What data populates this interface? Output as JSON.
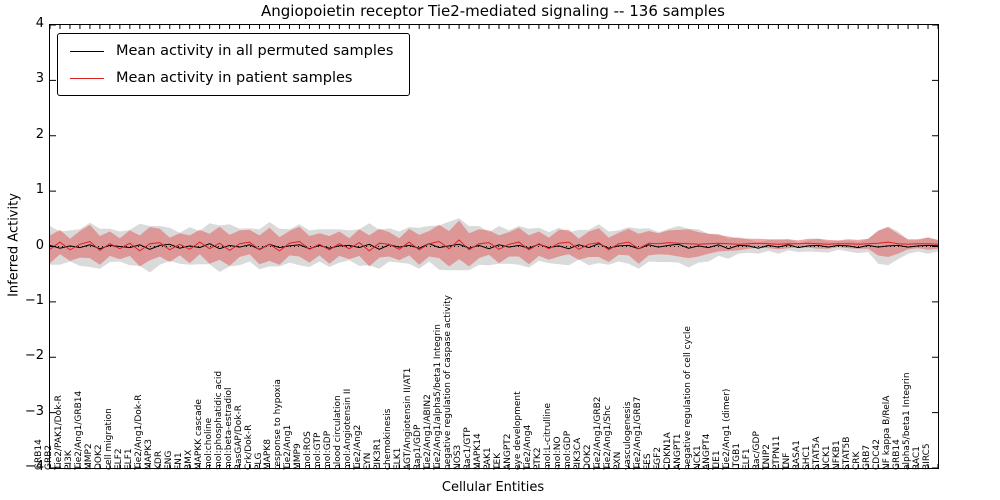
{
  "figure": {
    "title": "Angiopoietin receptor Tie2-mediated signaling -- 136 samples"
  },
  "chart_data": {
    "type": "line",
    "title": "Angiopoietin receptor Tie2-mediated signaling -- 136 samples",
    "xlabel": "Cellular Entities",
    "ylabel": "Inferred Activity",
    "ylim": [
      -4,
      4
    ],
    "yticks": [
      -4,
      -3,
      -2,
      -1,
      0,
      1,
      2,
      3,
      4
    ],
    "grid": false,
    "legend_position": "upper-left",
    "zero_line_style": "dotted",
    "categories": [
      "GRB14",
      "GRB2",
      "Tie2/PAK1/Dok-R",
      "PI3K",
      "Tie2/Ang1/GRB14",
      "MMP2",
      "DOK2",
      "cell migration",
      "ELF2",
      "ELF1",
      "Tie2/Ang1/Dok-R",
      "MAPK3",
      "KDR",
      "ENG",
      "FN1",
      "BMX",
      "MAPKK cascade",
      "mol:choline",
      "mol:phosphatidic acid",
      "mol:beta-estradiol",
      "RasGAP/Dok-R",
      "Crk/Dok-R",
      "PLG",
      "MAPK8",
      "response to hypoxia",
      "Tie2/Ang1",
      "MMP9",
      "mol:ROS",
      "mol:GTP",
      "mol:GDP",
      "blood circulation",
      "mol:Angiotensin II",
      "Tie2/Ang2",
      "FYN",
      "PIK3R1",
      "chemokinesis",
      "ELK1",
      "AGT/Angiotensin II/AT1",
      "Rap1/GDP",
      "Tie2/Ang1/ABIN2",
      "Tie2/Ang1/alpha5/beta1 Integrin",
      "negative regulation of caspase activity",
      "NOS3",
      "Rac1/GTP",
      "MAPK14",
      "PAK1",
      "TEK",
      "ANGPT2",
      "eye development",
      "Tie2/Ang4",
      "PTK2",
      "mol:L-citrulline",
      "mol:NO",
      "mol:GDP",
      "PIK3CA",
      "DOK2",
      "Tie2/Ang1/GRB2",
      "Tie2/Ang1/Shc",
      "PXN",
      "vasculogenesis",
      "Tie2/Ang1/GRB7",
      "FES",
      "FGF2",
      "CDKN1A",
      "ANGPT1",
      "negative regulation of cell cycle",
      "NCK1",
      "ANGPT4",
      "TIE1",
      "Tie2/Ang1 (dimer)",
      "ITGB1",
      "ELF1",
      "Rac/GDP",
      "TNIP2",
      "PTPN11",
      "TNF",
      "RASA1",
      "SHC1",
      "STAT5A",
      "NCK1",
      "NFKB1",
      "STAT5B",
      "CRK",
      "GRB7",
      "CDC42",
      "NF kappa B/RelA",
      "GRB14",
      "alpha5/beta1 Integrin",
      "RAC1",
      "BIRC5"
    ],
    "series": [
      {
        "name": "Mean activity in all permuted samples",
        "color": "#000000",
        "band_color": "#bbbbbb",
        "band_opacity": 0.55,
        "values": [
          0.02,
          -0.03,
          0.01,
          -0.02,
          0.03,
          -0.04,
          0.02,
          0,
          -0.02,
          0.03,
          -0.05,
          0.02,
          0.04,
          -0.03,
          0.01,
          -0.02,
          0.05,
          -0.04,
          0.02,
          -0.01,
          0.03,
          -0.05,
          0.04,
          -0.02,
          0.01,
          0.03,
          -0.04,
          0.02,
          -0.03,
          0.01,
          0.02,
          -0.02,
          0.04,
          -0.05,
          0.03,
          -0.01,
          0.02,
          -0.03,
          0.05,
          -0.02,
          0.01,
          0.04,
          -0.03,
          0.02,
          -0.04,
          0.03,
          -0.01,
          0.02,
          -0.03,
          0.04,
          -0.02,
          0.01,
          -0.04,
          0.03,
          -0.02,
          0.05,
          -0.03,
          0.01,
          0.02,
          -0.04,
          0.03,
          -0.01,
          0.02,
          0.04,
          -0.03,
          0.01,
          -0.02,
          0.03,
          -0.04,
          0.02,
          0.01,
          -0.03,
          0.02,
          -0.01,
          0.03,
          -0.02,
          0.01,
          0.02,
          -0.01,
          0.02,
          0.01,
          -0.02,
          0.02,
          -0.01,
          0.01,
          0.02,
          -0.01,
          0.01,
          0.02,
          0.01
        ],
        "band_half_width": [
          0.35,
          0.3,
          0.28,
          0.33,
          0.4,
          0.36,
          0.3,
          0.27,
          0.32,
          0.38,
          0.42,
          0.35,
          0.3,
          0.28,
          0.34,
          0.3,
          0.37,
          0.42,
          0.38,
          0.33,
          0.3,
          0.36,
          0.4,
          0.34,
          0.3,
          0.37,
          0.33,
          0.29,
          0.34,
          0.3,
          0.27,
          0.33,
          0.38,
          0.35,
          0.3,
          0.28,
          0.33,
          0.37,
          0.32,
          0.4,
          0.44,
          0.47,
          0.4,
          0.35,
          0.3,
          0.34,
          0.3,
          0.35,
          0.35,
          0.3,
          0.28,
          0.33,
          0.3,
          0.27,
          0.32,
          0.35,
          0.3,
          0.28,
          0.33,
          0.36,
          0.3,
          0.27,
          0.3,
          0.33,
          0.35,
          0.3,
          0.25,
          0.2,
          0.18,
          0.15,
          0.12,
          0.1,
          0.1,
          0.12,
          0.1,
          0.08,
          0.1,
          0.12,
          0.1,
          0.08,
          0.1,
          0.1,
          0.12,
          0.3,
          0.35,
          0.25,
          0.12,
          0.1,
          0.15,
          0.1
        ]
      },
      {
        "name": "Mean activity in patient samples",
        "color": "#dd2222",
        "band_color": "#e06060",
        "band_opacity": 0.55,
        "values": [
          -0.05,
          0.08,
          -0.06,
          0.04,
          0.09,
          -0.07,
          0.05,
          -0.04,
          0.06,
          -0.08,
          0.05,
          0.07,
          -0.06,
          0.04,
          -0.05,
          0.08,
          -0.04,
          0.06,
          -0.07,
          0.05,
          0.08,
          -0.06,
          0.04,
          -0.08,
          0.06,
          0.09,
          -0.05,
          0.04,
          -0.06,
          0.05,
          -0.04,
          0.07,
          -0.08,
          0.06,
          0.04,
          -0.05,
          0.08,
          -0.06,
          0.05,
          0.09,
          -0.04,
          0.12,
          -0.06,
          0.05,
          0.07,
          -0.05,
          0.04,
          0.08,
          -0.06,
          0.05,
          -0.04,
          0.06,
          0.08,
          -0.05,
          0.04,
          0.07,
          -0.06,
          0.05,
          0.08,
          -0.04,
          0.06,
          0.05,
          0.07,
          0.06,
          0.05,
          0.04,
          0.05,
          0.06,
          0.05,
          0.04,
          0.05,
          0.06,
          0.05,
          0.04,
          0.05,
          0.05,
          0.06,
          0.05,
          0.04,
          0.05,
          0.05,
          0.04,
          0.05,
          0.06,
          0.08,
          0.05,
          0.04,
          0.05,
          0.05,
          0.04
        ],
        "band_half_width": [
          0.25,
          0.22,
          0.2,
          0.24,
          0.3,
          0.26,
          0.22,
          0.19,
          0.23,
          0.28,
          0.3,
          0.25,
          0.22,
          0.2,
          0.25,
          0.22,
          0.27,
          0.3,
          0.28,
          0.24,
          0.22,
          0.26,
          0.3,
          0.25,
          0.22,
          0.27,
          0.24,
          0.2,
          0.25,
          0.22,
          0.19,
          0.24,
          0.28,
          0.26,
          0.22,
          0.2,
          0.24,
          0.27,
          0.23,
          0.3,
          0.32,
          0.35,
          0.3,
          0.26,
          0.22,
          0.25,
          0.22,
          0.26,
          0.26,
          0.22,
          0.2,
          0.24,
          0.22,
          0.19,
          0.23,
          0.26,
          0.22,
          0.2,
          0.24,
          0.27,
          0.22,
          0.19,
          0.22,
          0.24,
          0.26,
          0.22,
          0.18,
          0.15,
          0.13,
          0.11,
          0.09,
          0.08,
          0.08,
          0.09,
          0.08,
          0.06,
          0.08,
          0.09,
          0.08,
          0.06,
          0.08,
          0.08,
          0.09,
          0.22,
          0.27,
          0.18,
          0.09,
          0.08,
          0.11,
          0.08
        ]
      }
    ]
  }
}
